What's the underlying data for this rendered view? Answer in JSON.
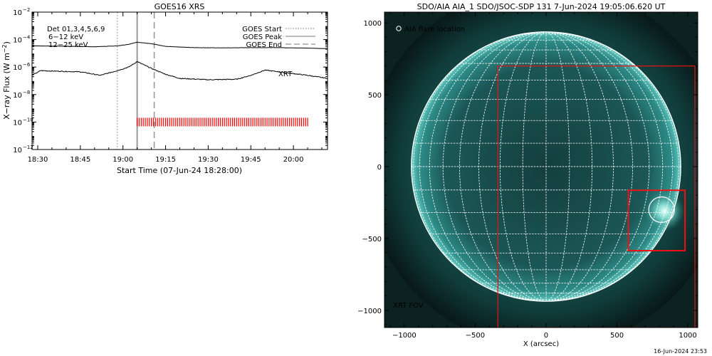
{
  "footer_timestamp": "16-Jun-2024 23:53",
  "chart_data": [
    {
      "type": "line",
      "title": "GOES16 XRS",
      "xlabel": "Start Time (07-Jun-24 18:28:00)",
      "ylabel": "X-ray Flux (W m^-2)",
      "ylabel_base": "X−ray Flux (W m",
      "ylabel_exp": "−2",
      "ylabel_close": ")",
      "y_scale": "log",
      "xlim": [
        "18:28",
        "20:12"
      ],
      "ylim": [
        1e-12,
        0.01
      ],
      "x_ticks": [
        "18:30",
        "18:45",
        "19:00",
        "19:15",
        "19:30",
        "19:45",
        "20:00"
      ],
      "y_ticks": [
        {
          "value": 1e-12,
          "label": "10",
          "exp": "−12"
        },
        {
          "value": 1e-10,
          "label": "10",
          "exp": "−10"
        },
        {
          "value": 1e-08,
          "label": "10",
          "exp": "−8"
        },
        {
          "value": 1e-06,
          "label": "10",
          "exp": "−6"
        },
        {
          "value": 0.0001,
          "label": "10",
          "exp": "−4"
        },
        {
          "value": 0.01,
          "label": "10",
          "exp": "−2"
        }
      ],
      "detectors_label": "Det 01,3,4,5,6,9",
      "energy_bands": [
        {
          "label": "6−12 keV",
          "color": "#cc00cc"
        },
        {
          "label": "12−25 keV",
          "color": "#00cc00"
        }
      ],
      "legend_position": "top-right",
      "legend": [
        {
          "label": "GOES Start",
          "style": "dotted"
        },
        {
          "label": "GOES Peak",
          "style": "solid"
        },
        {
          "label": "GOES End",
          "style": "dashed"
        }
      ],
      "goes_start_time": "18:58",
      "goes_peak_time": "19:05",
      "goes_end_time": "19:11",
      "series": [
        {
          "color": "#000000",
          "points": [
            [
              "18:28",
              3.5e-05
            ],
            [
              "18:40",
              3.3e-05
            ],
            [
              "18:50",
              3e-05
            ],
            [
              "18:58",
              3.5e-05
            ],
            [
              "19:02",
              4.5e-05
            ],
            [
              "19:05",
              6.5e-05
            ],
            [
              "19:10",
              5e-05
            ],
            [
              "19:15",
              3.2e-05
            ],
            [
              "19:25",
              2.6e-05
            ],
            [
              "19:35",
              2.5e-05
            ],
            [
              "19:45",
              2.6e-05
            ],
            [
              "19:55",
              2.6e-05
            ],
            [
              "20:05",
              2.4e-05
            ],
            [
              "20:12",
              2.2e-05
            ]
          ]
        },
        {
          "color": "#000000",
          "points": [
            [
              "18:28",
              2.5e-07
            ],
            [
              "18:31",
              5.5e-07
            ],
            [
              "18:37",
              5e-07
            ],
            [
              "18:45",
              4.5e-07
            ],
            [
              "18:52",
              2.5e-07
            ],
            [
              "18:58",
              5.5e-07
            ],
            [
              "19:02",
              1e-06
            ],
            [
              "19:05",
              2.5e-06
            ],
            [
              "19:10",
              8e-07
            ],
            [
              "19:15",
              3e-07
            ],
            [
              "19:20",
              1.5e-07
            ],
            [
              "19:30",
              1.2e-07
            ],
            [
              "19:40",
              1.3e-07
            ],
            [
              "19:45",
              2.5e-07
            ],
            [
              "19:50",
              6e-07
            ],
            [
              "19:55",
              4.5e-07
            ],
            [
              "20:05",
              2.5e-07
            ],
            [
              "20:12",
              1.5e-07
            ]
          ]
        }
      ],
      "xrt_label": "XRT",
      "xrt_color": "#ff0000",
      "xrt_obs_start": "19:05",
      "xrt_obs_end": "20:05",
      "xrt_obs_count": 85,
      "xrt_obs_level": 1e-10
    },
    {
      "type": "image",
      "title": "SDO/AIA AIA_1 SDO/JSOC-SDP 131  7-Jun-2024 19:05:06.620 UT",
      "xlabel": "X (arcsec)",
      "x_ticks": [
        -1000,
        -500,
        0,
        500,
        1000
      ],
      "y_ticks": [
        1000,
        500,
        0,
        -500,
        -1000
      ],
      "xlim": [
        -1140,
        1070
      ],
      "ylim": [
        -1120,
        1075
      ],
      "solar_radius": 950,
      "grid": true,
      "flare_legend": "AIA flare location",
      "flare_location": [
        815,
        -300
      ],
      "xrt_fov_label": "XRT FOV",
      "xrt_fov": {
        "x": [
          -340,
          1050
        ],
        "y": [
          -1120,
          700
        ]
      },
      "roi_box": {
        "x": [
          580,
          980
        ],
        "y": [
          -585,
          -165
        ]
      },
      "colors": {
        "disk": "#1e7e7a",
        "corona": "#0c2f2e",
        "grid": "#ffffff",
        "fov": "#ee1111"
      }
    }
  ]
}
